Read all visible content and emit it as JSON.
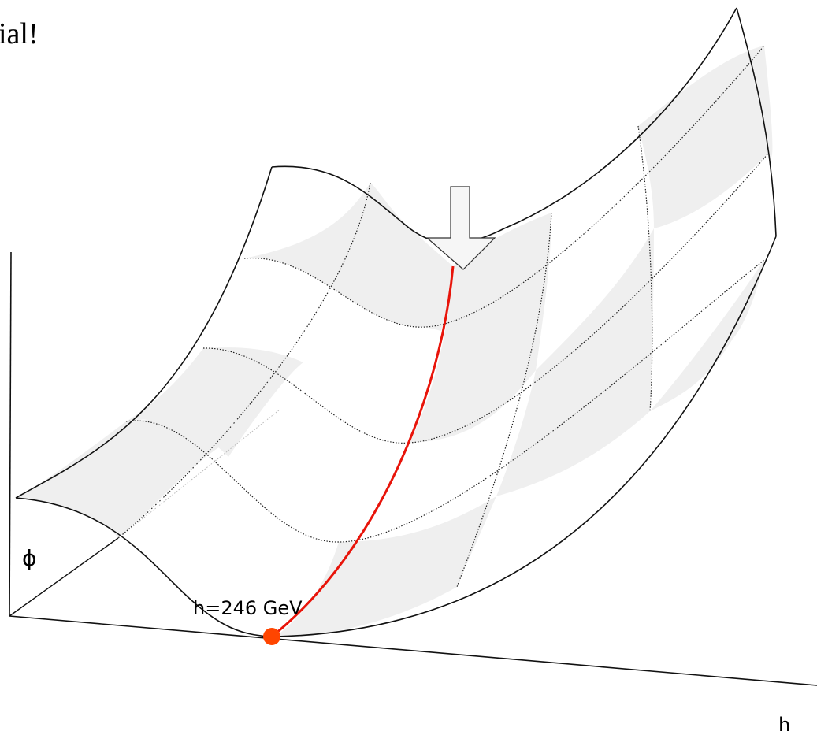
{
  "header": {
    "title": "ial!"
  },
  "axes": {
    "y_label": "ϕ",
    "x_label": "h",
    "marker_label": "h=246 GeV"
  }
}
